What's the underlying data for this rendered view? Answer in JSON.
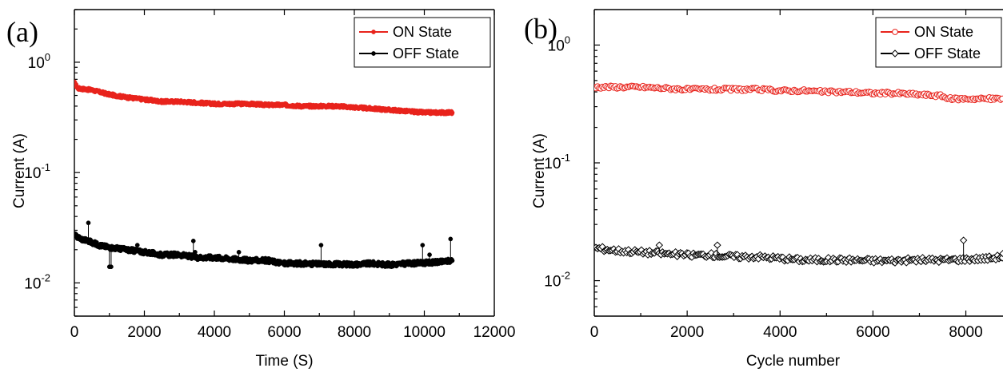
{
  "chart_data": [
    {
      "type": "scatter",
      "panel_label": "(a)",
      "xlabel": "Time (S)",
      "ylabel": "Current (A)",
      "xlim": [
        0,
        12000
      ],
      "ylim": [
        0.005,
        3
      ],
      "y_scale": "log",
      "x_ticks": [
        0,
        2000,
        4000,
        6000,
        8000,
        10000,
        12000
      ],
      "x_tick_labels": [
        "0",
        "2000",
        "4000",
        "6000",
        "8000",
        "10000",
        "12000"
      ],
      "y_ticks": [
        1,
        0.1,
        0.01
      ],
      "y_tick_labels": [
        {
          "base": "10",
          "exp": "0"
        },
        {
          "base": "10",
          "exp": "-1"
        },
        {
          "base": "10",
          "exp": "-2"
        }
      ],
      "legend_position": "top-right",
      "marker": "filled-circle",
      "grid": false,
      "series": [
        {
          "name": "ON  State",
          "color": "#e8231c",
          "x": [
            0,
            100,
            500,
            1000,
            1500,
            2000,
            2500,
            3000,
            3500,
            4000,
            4500,
            5000,
            5500,
            6000,
            6500,
            7000,
            7500,
            8000,
            8500,
            9000,
            9500,
            10000,
            10500,
            10800
          ],
          "y": [
            0.65,
            0.58,
            0.56,
            0.51,
            0.48,
            0.46,
            0.44,
            0.44,
            0.43,
            0.42,
            0.42,
            0.42,
            0.41,
            0.41,
            0.4,
            0.4,
            0.4,
            0.39,
            0.38,
            0.37,
            0.36,
            0.35,
            0.35,
            0.35
          ]
        },
        {
          "name": "OFF State",
          "color": "#000000",
          "x": [
            0,
            200,
            400,
            700,
            1000,
            1500,
            2000,
            2500,
            3000,
            3500,
            4000,
            4500,
            5000,
            5500,
            6000,
            6500,
            7000,
            7500,
            8000,
            8500,
            9000,
            9500,
            10000,
            10500,
            10800
          ],
          "y": [
            0.027,
            0.025,
            0.024,
            0.022,
            0.021,
            0.02,
            0.019,
            0.018,
            0.018,
            0.017,
            0.017,
            0.0165,
            0.016,
            0.016,
            0.015,
            0.015,
            0.0148,
            0.0148,
            0.0147,
            0.015,
            0.0146,
            0.015,
            0.0152,
            0.0155,
            0.016
          ],
          "spikes": [
            {
              "x": 400,
              "y": 0.035
            },
            {
              "x": 1000,
              "y": 0.014
            },
            {
              "x": 1050,
              "y": 0.014
            },
            {
              "x": 1800,
              "y": 0.022
            },
            {
              "x": 3400,
              "y": 0.024
            },
            {
              "x": 3450,
              "y": 0.019
            },
            {
              "x": 4700,
              "y": 0.019
            },
            {
              "x": 7050,
              "y": 0.022
            },
            {
              "x": 9950,
              "y": 0.022
            },
            {
              "x": 10150,
              "y": 0.018
            },
            {
              "x": 10750,
              "y": 0.025
            }
          ]
        }
      ]
    },
    {
      "type": "scatter",
      "panel_label": "(b)",
      "xlabel": "Cycle number",
      "ylabel": "Current (A)",
      "xlim": [
        0,
        8800
      ],
      "ylim": [
        0.005,
        2
      ],
      "y_scale": "log",
      "x_ticks": [
        0,
        2000,
        4000,
        6000,
        8000
      ],
      "x_tick_labels": [
        "0",
        "2000",
        "4000",
        "6000",
        "8000"
      ],
      "y_ticks": [
        1,
        0.1,
        0.01
      ],
      "y_tick_labels": [
        {
          "base": "10",
          "exp": "0"
        },
        {
          "base": "10",
          "exp": "-1"
        },
        {
          "base": "10",
          "exp": "-2"
        }
      ],
      "legend_position": "top-right",
      "grid": false,
      "series": [
        {
          "name": "ON  State",
          "color": "#e8231c",
          "marker": "open-circle",
          "x": [
            0,
            500,
            1000,
            1500,
            2000,
            2500,
            3000,
            3500,
            4000,
            4500,
            5000,
            5500,
            6000,
            6500,
            7000,
            7500,
            7600,
            8000,
            8500,
            8800
          ],
          "y": [
            0.44,
            0.44,
            0.44,
            0.43,
            0.42,
            0.42,
            0.42,
            0.42,
            0.41,
            0.41,
            0.4,
            0.4,
            0.39,
            0.39,
            0.38,
            0.37,
            0.35,
            0.35,
            0.35,
            0.35
          ]
        },
        {
          "name": "OFF State",
          "color": "#000000",
          "marker": "open-diamond",
          "x": [
            0,
            500,
            1000,
            1500,
            2000,
            2500,
            3000,
            3500,
            4000,
            4500,
            5000,
            5500,
            6000,
            6500,
            7000,
            7500,
            8000,
            8500,
            8800
          ],
          "y": [
            0.019,
            0.018,
            0.0175,
            0.017,
            0.0165,
            0.0165,
            0.016,
            0.016,
            0.0155,
            0.015,
            0.015,
            0.015,
            0.0148,
            0.0148,
            0.015,
            0.015,
            0.0152,
            0.0155,
            0.016
          ],
          "spikes": [
            {
              "x": 1400,
              "y": 0.02
            },
            {
              "x": 2650,
              "y": 0.02
            },
            {
              "x": 7950,
              "y": 0.022
            },
            {
              "x": 8800,
              "y": 0.017
            }
          ]
        }
      ]
    }
  ]
}
